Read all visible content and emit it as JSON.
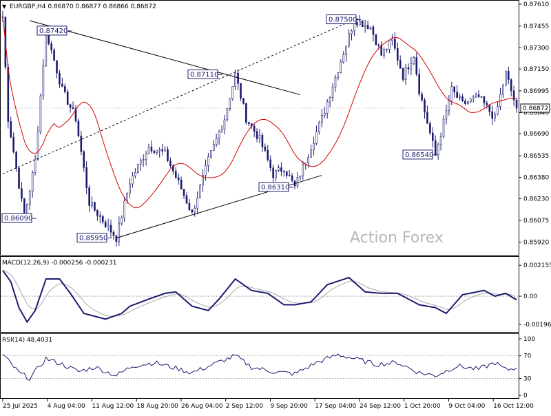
{
  "chart_data": [
    {
      "type": "candlestick",
      "symbol": "EURGBP",
      "timeframe": "H4",
      "ohlc_label": "EURGBP,H4  0.86870 0.86877 0.86866 0.86872",
      "last_price_label": "0.86872",
      "last_price": 0.86872,
      "ylim": [
        0.8586,
        0.8762
      ],
      "y_ticks": [
        "0.87610",
        "0.87455",
        "0.87300",
        "0.87150",
        "0.86995",
        "0.86840",
        "0.86690",
        "0.86535",
        "0.86380",
        "0.86230",
        "0.86075",
        "0.85920"
      ],
      "y_tick_values": [
        0.8761,
        0.87455,
        0.873,
        0.8715,
        0.86995,
        0.8684,
        0.8669,
        0.86535,
        0.8638,
        0.8623,
        0.86075,
        0.8592
      ],
      "x_ticks": [
        "25 Jul 2025",
        "4 Aug 04:00",
        "11 Aug 12:00",
        "18 Aug 20:00",
        "26 Aug 04:00",
        "2 Sep 12:00",
        "9 Sep 20:00",
        "17 Sep 04:00",
        "24 Sep 12:00",
        "1 Oct 20:00",
        "9 Oct 04:00",
        "16 Oct 12:00"
      ],
      "path_waypoints": [
        [
          0,
          0.8752
        ],
        [
          2,
          0.868
        ],
        [
          8,
          0.8609
        ],
        [
          12,
          0.865
        ],
        [
          16,
          0.8742
        ],
        [
          22,
          0.87
        ],
        [
          27,
          0.868
        ],
        [
          32,
          0.862
        ],
        [
          42,
          0.8595
        ],
        [
          47,
          0.8635
        ],
        [
          54,
          0.866
        ],
        [
          60,
          0.8655
        ],
        [
          66,
          0.863
        ],
        [
          70,
          0.8612
        ],
        [
          76,
          0.865
        ],
        [
          82,
          0.868
        ],
        [
          86,
          0.8711
        ],
        [
          90,
          0.868
        ],
        [
          95,
          0.8665
        ],
        [
          100,
          0.864
        ],
        [
          104,
          0.8645
        ],
        [
          108,
          0.8631
        ],
        [
          114,
          0.866
        ],
        [
          118,
          0.868
        ],
        [
          124,
          0.8715
        ],
        [
          130,
          0.875
        ],
        [
          136,
          0.8745
        ],
        [
          140,
          0.8725
        ],
        [
          144,
          0.8735
        ],
        [
          148,
          0.871
        ],
        [
          152,
          0.8725
        ],
        [
          154,
          0.87
        ],
        [
          160,
          0.8654
        ],
        [
          166,
          0.87
        ],
        [
          170,
          0.869
        ],
        [
          176,
          0.8695
        ],
        [
          182,
          0.868
        ],
        [
          186,
          0.8712
        ],
        [
          190,
          0.8687
        ]
      ],
      "annotations": [
        {
          "label": "0.87420",
          "value": 0.8742
        },
        {
          "label": "0.87500",
          "value": 0.875
        },
        {
          "label": "0.87110",
          "value": 0.8711
        },
        {
          "label": "0.86310",
          "value": 0.8631
        },
        {
          "label": "0.86540",
          "value": 0.8654
        },
        {
          "label": "0.86090",
          "value": 0.8609
        },
        {
          "label": "0.85950",
          "value": 0.8595
        }
      ],
      "trendlines": [
        {
          "name": "falling-resistance",
          "from": [
            10,
            0.87493
          ],
          "to": [
            110,
            0.86967
          ]
        },
        {
          "name": "rising-support",
          "from": [
            42,
            0.8595
          ],
          "to": [
            118,
            0.86395
          ]
        },
        {
          "name": "rising-channel",
          "from": [
            0,
            0.86405
          ],
          "to": [
            130,
            0.875
          ]
        }
      ],
      "moving_average": {
        "color": "#d10000",
        "window": 20
      },
      "colors": {
        "candles": "#1a1a6e",
        "trendlines": "#000000"
      },
      "watermark": "Action Forex"
    },
    {
      "type": "line",
      "title": "MACD(12,26,9) -0.000256 -0.000231",
      "ylim": [
        -0.0024,
        0.0025
      ],
      "y_ticks": [
        "0.002155",
        "0.00",
        "-0.001965"
      ],
      "y_tick_values": [
        0.002155,
        0.0,
        -0.001965
      ],
      "series": [
        {
          "name": "MACD",
          "color": "#1a1a6e"
        },
        {
          "name": "Signal",
          "color": "#a8a8a8"
        }
      ],
      "macd_waypoints": [
        [
          0,
          0.0018
        ],
        [
          3,
          0.001
        ],
        [
          6,
          -0.0008
        ],
        [
          9,
          -0.0018
        ],
        [
          12,
          -0.001
        ],
        [
          16,
          0.0012
        ],
        [
          21,
          0.0012
        ],
        [
          25,
          0.0002
        ],
        [
          30,
          -0.0012
        ],
        [
          38,
          -0.0016
        ],
        [
          44,
          -0.0012
        ],
        [
          47,
          -0.0007
        ],
        [
          54,
          -0.0002
        ],
        [
          60,
          0.0002
        ],
        [
          64,
          0.0003
        ],
        [
          70,
          -0.0007
        ],
        [
          76,
          -0.001
        ],
        [
          80,
          -0.0002
        ],
        [
          86,
          0.0012
        ],
        [
          92,
          0.0004
        ],
        [
          98,
          0.0002
        ],
        [
          104,
          -0.0006
        ],
        [
          108,
          -0.0006
        ],
        [
          114,
          -0.0004
        ],
        [
          120,
          0.0008
        ],
        [
          128,
          0.0013
        ],
        [
          134,
          0.0003
        ],
        [
          140,
          0.0002
        ],
        [
          146,
          0.0002
        ],
        [
          154,
          -0.0006
        ],
        [
          160,
          -0.0008
        ],
        [
          164,
          -0.0012
        ],
        [
          170,
          0.0001
        ],
        [
          178,
          0.0004
        ],
        [
          182,
          0.0
        ],
        [
          186,
          0.0002
        ],
        [
          190,
          -0.00026
        ]
      ],
      "signal_value": -0.000231
    },
    {
      "type": "line",
      "title": "RSI(14) 48.4031",
      "ylim": [
        0,
        100
      ],
      "y_ticks": [
        "100",
        "70",
        "30",
        "0"
      ],
      "y_tick_values": [
        100,
        70,
        30,
        0
      ],
      "rsi_waypoints": [
        [
          0,
          72
        ],
        [
          6,
          40
        ],
        [
          10,
          30
        ],
        [
          16,
          65
        ],
        [
          22,
          55
        ],
        [
          28,
          42
        ],
        [
          34,
          50
        ],
        [
          42,
          35
        ],
        [
          48,
          52
        ],
        [
          56,
          58
        ],
        [
          64,
          48
        ],
        [
          70,
          40
        ],
        [
          78,
          55
        ],
        [
          86,
          70
        ],
        [
          92,
          50
        ],
        [
          100,
          42
        ],
        [
          108,
          38
        ],
        [
          116,
          58
        ],
        [
          124,
          72
        ],
        [
          130,
          65
        ],
        [
          138,
          55
        ],
        [
          146,
          58
        ],
        [
          154,
          40
        ],
        [
          160,
          35
        ],
        [
          168,
          52
        ],
        [
          176,
          46
        ],
        [
          182,
          58
        ],
        [
          186,
          45
        ],
        [
          190,
          48.4031
        ]
      ],
      "series": [
        {
          "name": "RSI",
          "color": "#1a1a6e"
        }
      ],
      "reference_lines": [
        70,
        30
      ]
    }
  ]
}
